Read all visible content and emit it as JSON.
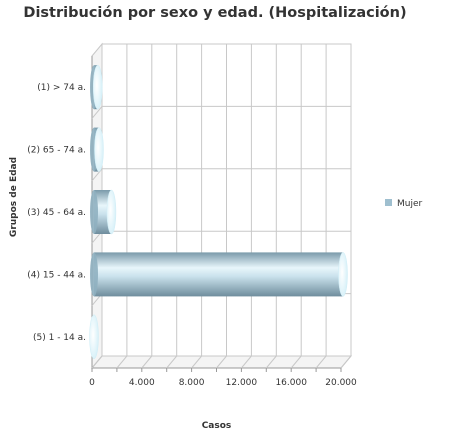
{
  "chart_data": {
    "type": "bar",
    "orientation": "horizontal",
    "title": "Distribución por sexo y edad. (Hospitalización)",
    "xlabel": "Casos",
    "ylabel": "Grupos de Edad",
    "categories": [
      "(1) > 74 a.",
      "(2) 65 - 74 a.",
      "(3) 45 - 64 a.",
      "(4) 15 - 44 a.",
      "(5) 1 - 14 a."
    ],
    "series": [
      {
        "name": "Mujer",
        "color": "#9fbfcf",
        "values": [
          300,
          400,
          1400,
          20000,
          0
        ]
      }
    ],
    "xlim": [
      0,
      20000
    ],
    "xticks": [
      0,
      2000,
      4000,
      6000,
      8000,
      10000,
      12000,
      14000,
      16000,
      18000,
      20000
    ],
    "xtick_labels": [
      "0",
      "4.000",
      "8.000",
      "12.000",
      "16.000",
      "20.000"
    ],
    "grid": true,
    "legend_position": "right",
    "style": "3d-cylinder"
  }
}
